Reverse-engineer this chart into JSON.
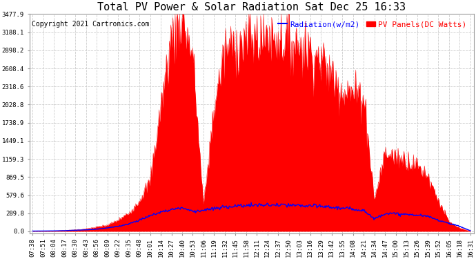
{
  "title": "Total PV Power & Solar Radiation Sat Dec 25 16:33",
  "copyright": "Copyright 2021 Cartronics.com",
  "legend_radiation": "Radiation(w/m2)",
  "legend_pv": "PV Panels(DC Watts)",
  "yticks": [
    0.0,
    289.8,
    579.6,
    869.5,
    1159.3,
    1449.1,
    1738.9,
    2028.8,
    2318.6,
    2608.4,
    2898.2,
    3188.1,
    3477.9
  ],
  "ymax": 3477.9,
  "bg_color": "#ffffff",
  "grid_color": "#cccccc",
  "pv_color": "#ff0000",
  "radiation_color": "#0000ff",
  "title_fontsize": 11,
  "copyright_fontsize": 7,
  "legend_fontsize": 8,
  "tick_fontsize": 6.5,
  "xtick_rotation": 90,
  "x_times": [
    "07:38",
    "07:51",
    "08:04",
    "08:17",
    "08:30",
    "08:43",
    "08:56",
    "09:09",
    "09:22",
    "09:35",
    "09:48",
    "10:01",
    "10:14",
    "10:27",
    "10:40",
    "10:53",
    "11:06",
    "11:19",
    "11:32",
    "11:45",
    "11:58",
    "12:11",
    "12:24",
    "12:37",
    "12:50",
    "13:03",
    "13:16",
    "13:29",
    "13:42",
    "13:55",
    "14:08",
    "14:21",
    "14:34",
    "14:47",
    "15:00",
    "15:13",
    "15:26",
    "15:39",
    "15:52",
    "16:05",
    "16:18",
    "16:31"
  ],
  "pv_values": [
    5,
    5,
    8,
    15,
    25,
    40,
    70,
    100,
    180,
    290,
    500,
    800,
    2000,
    3100,
    3450,
    2800,
    400,
    2000,
    2900,
    3000,
    3050,
    3100,
    3150,
    3100,
    3050,
    3000,
    2900,
    2750,
    2500,
    2300,
    2200,
    2200,
    500,
    1250,
    1200,
    1150,
    1050,
    900,
    500,
    150,
    50,
    5
  ],
  "radiation_values": [
    5,
    6,
    8,
    12,
    18,
    25,
    35,
    55,
    80,
    120,
    180,
    250,
    310,
    350,
    380,
    320,
    340,
    360,
    390,
    405,
    415,
    420,
    420,
    420,
    415,
    410,
    405,
    400,
    385,
    370,
    355,
    340,
    200,
    290,
    280,
    270,
    260,
    240,
    180,
    130,
    80,
    10
  ],
  "pv_noise_scale": 0.08,
  "rad_noise_scale": 0.04,
  "n_fine": 600
}
